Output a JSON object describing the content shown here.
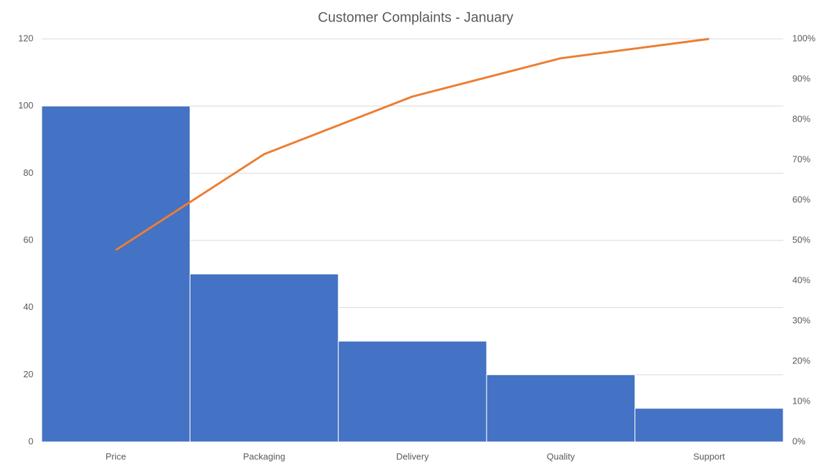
{
  "chart_data": {
    "type": "pareto",
    "title": "Customer Complaints - January",
    "categories": [
      "Price",
      "Packaging",
      "Delivery",
      "Quality",
      "Support"
    ],
    "values": [
      100,
      50,
      30,
      20,
      10
    ],
    "color": "#4472c4",
    "line": {
      "values": [
        47.6,
        71.4,
        85.7,
        95.2,
        100
      ],
      "color": "#ed7d31",
      "axis": "y2"
    },
    "ylim": [
      0,
      120
    ],
    "yticks": [
      0,
      20,
      40,
      60,
      80,
      100,
      120
    ],
    "y2lim": [
      0,
      100
    ],
    "y2ticks": [
      {
        "value": 0,
        "label": "0%"
      },
      {
        "value": 10,
        "label": "10%"
      },
      {
        "value": 20,
        "label": "20%"
      },
      {
        "value": 30,
        "label": "30%"
      },
      {
        "value": 40,
        "label": "40%"
      },
      {
        "value": 50,
        "label": "50%"
      },
      {
        "value": 60,
        "label": "60%"
      },
      {
        "value": 70,
        "label": "70%"
      },
      {
        "value": 80,
        "label": "80%"
      },
      {
        "value": 90,
        "label": "90%"
      },
      {
        "value": 100,
        "label": "100%"
      }
    ],
    "grid": true
  }
}
